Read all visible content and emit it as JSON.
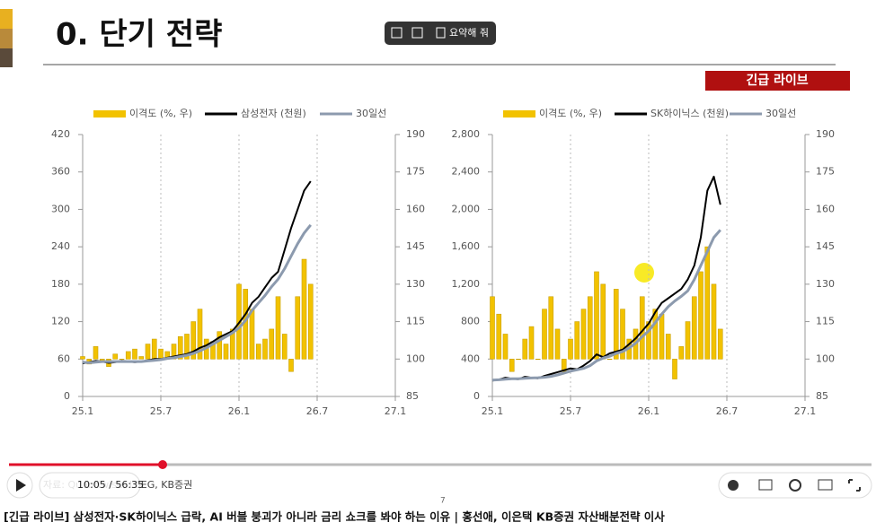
{
  "slide": {
    "title": "0. 단기 전략",
    "badge": "긴급 라이브",
    "source": "자료: Quantiwise, LSEG, KB증권",
    "page": "7"
  },
  "overlay": {
    "summary_button": "요약해 줘"
  },
  "chart_data": [
    {
      "type": "bar-line",
      "x": [
        0,
        0.5,
        1,
        1.5,
        2,
        2.5,
        3,
        3.5,
        4,
        4.5,
        5,
        5.5,
        6,
        6.5,
        7,
        7.5,
        8,
        8.5,
        9,
        9.5,
        10,
        10.5,
        11,
        11.5,
        12,
        12.5,
        13,
        13.5,
        14,
        14.5,
        15,
        15.5,
        16,
        16.5,
        17,
        17.5
      ],
      "xlim": [
        0,
        24
      ],
      "xticks": [
        {
          "value": 0,
          "label": "25.1"
        },
        {
          "value": 6,
          "label": "25.7"
        },
        {
          "value": 12,
          "label": "26.1"
        },
        {
          "value": 18,
          "label": "26.7"
        },
        {
          "value": 24,
          "label": "27.1"
        }
      ],
      "ylim": [
        0,
        420
      ],
      "yticks": [
        0,
        60,
        120,
        180,
        240,
        300,
        360,
        420
      ],
      "y2lim": [
        85,
        190
      ],
      "y2ticks": [
        85,
        100,
        115,
        130,
        145,
        160,
        175,
        190
      ],
      "y2_base": 100,
      "grid": "x",
      "series": [
        {
          "name": "이격도 (%, 우)",
          "style": "bar",
          "axis": "y2",
          "color": "#f2c200",
          "values": [
            101,
            98,
            105,
            99,
            97,
            102,
            100,
            103,
            104,
            101,
            106,
            108,
            104,
            103,
            106,
            109,
            110,
            115,
            120,
            108,
            107,
            111,
            106,
            112,
            130,
            128,
            120,
            106,
            108,
            112,
            125,
            110,
            95,
            125,
            140,
            130
          ]
        },
        {
          "name": "삼성전자 (천원)",
          "style": "line",
          "color": "#000000",
          "values": [
            53,
            55,
            57,
            56,
            54,
            55,
            57,
            56,
            55,
            56,
            58,
            60,
            60,
            62,
            64,
            66,
            68,
            72,
            78,
            82,
            88,
            95,
            100,
            105,
            118,
            132,
            150,
            160,
            175,
            190,
            200,
            235,
            270,
            300,
            330,
            345
          ]
        },
        {
          "name": "30일선",
          "style": "line",
          "color": "#8c9aae",
          "values": [
            55,
            54,
            55,
            56,
            56,
            56,
            56,
            56,
            56,
            56,
            57,
            58,
            59,
            61,
            62,
            64,
            66,
            69,
            73,
            78,
            84,
            90,
            96,
            102,
            110,
            122,
            138,
            150,
            162,
            176,
            188,
            205,
            225,
            245,
            262,
            275
          ]
        }
      ]
    },
    {
      "type": "bar-line",
      "x": [
        0,
        0.5,
        1,
        1.5,
        2,
        2.5,
        3,
        3.5,
        4,
        4.5,
        5,
        5.5,
        6,
        6.5,
        7,
        7.5,
        8,
        8.5,
        9,
        9.5,
        10,
        10.5,
        11,
        11.5,
        12,
        12.5,
        13,
        13.5,
        14,
        14.5,
        15,
        15.5,
        16,
        16.5,
        17,
        17.5
      ],
      "xlim": [
        0,
        24
      ],
      "xticks": [
        {
          "value": 0,
          "label": "25.1"
        },
        {
          "value": 6,
          "label": "25.7"
        },
        {
          "value": 12,
          "label": "26.1"
        },
        {
          "value": 18,
          "label": "26.7"
        },
        {
          "value": 24,
          "label": "27.1"
        }
      ],
      "ylim": [
        0,
        2800
      ],
      "yticks": [
        0,
        400,
        800,
        {
          "value": 1200,
          "label": "1,200"
        },
        {
          "value": 1600,
          "label": "1,600"
        },
        {
          "value": 2000,
          "label": "2,000"
        },
        {
          "value": 2400,
          "label": "2,400"
        },
        {
          "value": 2800,
          "label": "2,800"
        }
      ],
      "y2lim": [
        85,
        190
      ],
      "y2ticks": [
        85,
        100,
        115,
        130,
        145,
        160,
        175,
        190
      ],
      "y2_base": 100,
      "grid": "x",
      "series": [
        {
          "name": "이격도 (%, 우)",
          "style": "bar",
          "axis": "y2",
          "color": "#f2c200",
          "values": [
            125,
            118,
            110,
            95,
            100,
            108,
            113,
            100,
            120,
            125,
            112,
            95,
            108,
            115,
            120,
            125,
            135,
            130,
            100,
            128,
            120,
            108,
            112,
            125,
            115,
            120,
            118,
            110,
            92,
            105,
            115,
            125,
            135,
            145,
            130,
            112
          ]
        },
        {
          "name": "SK하이닉스 (천원)",
          "style": "line",
          "color": "#000000",
          "values": [
            170,
            180,
            200,
            190,
            185,
            210,
            200,
            195,
            220,
            240,
            260,
            280,
            300,
            290,
            330,
            380,
            450,
            420,
            460,
            480,
            500,
            560,
            620,
            700,
            780,
            900,
            1000,
            1050,
            1100,
            1150,
            1250,
            1400,
            1700,
            2200,
            2350,
            2050
          ]
        },
        {
          "name": "30일선",
          "style": "line",
          "color": "#8c9aae",
          "values": [
            175,
            178,
            185,
            190,
            190,
            195,
            198,
            200,
            205,
            215,
            230,
            250,
            270,
            285,
            300,
            330,
            380,
            410,
            430,
            460,
            480,
            520,
            570,
            640,
            700,
            790,
            880,
            960,
            1020,
            1070,
            1130,
            1250,
            1400,
            1550,
            1700,
            1780
          ]
        }
      ]
    }
  ],
  "player": {
    "time": "10:05 / 56:35",
    "video_title": "[긴급 라이브] 삼성전자·SK하이닉스 급락, AI 버블 붕괴가 아니라 금리 쇼크를 봐야 하는 이유 | 홍선애, 이은택 KB증권 자산배분전략 이사"
  }
}
